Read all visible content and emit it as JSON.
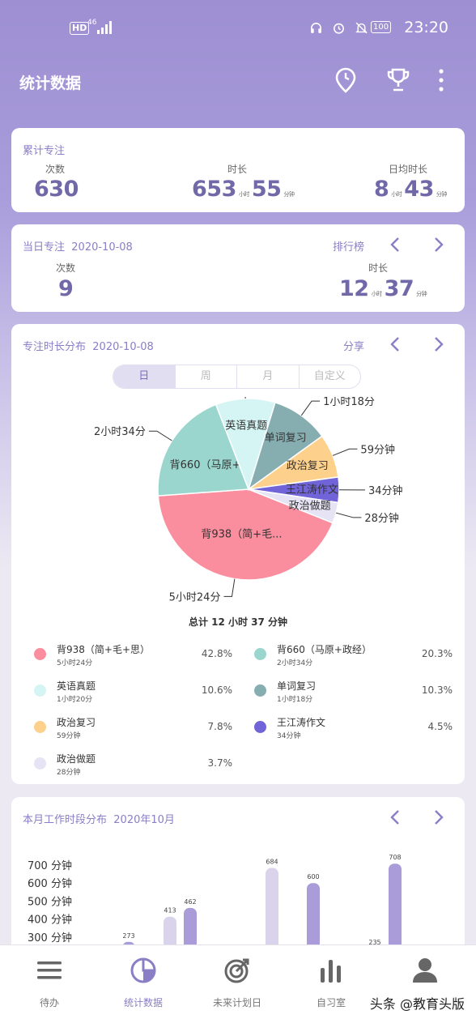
{
  "status_bar": {
    "hd": "HD",
    "net": "46",
    "battery": "100",
    "time": "23:20"
  },
  "header": {
    "title": "统计数据"
  },
  "cumulative": {
    "label": "累计专注",
    "count_label": "次数",
    "count": "630",
    "duration_label": "时长",
    "hours": "653",
    "hours_unit": "小时",
    "minutes": "55",
    "minutes_unit": "分钟",
    "daily_label": "日均时长",
    "daily_hours": "8",
    "daily_hours_unit": "小时",
    "daily_minutes": "43",
    "daily_minutes_unit": "分钟"
  },
  "today": {
    "label": "当日专注",
    "date": "2020-10-08",
    "ranking": "排行榜",
    "count_label": "次数",
    "count": "9",
    "duration_label": "时长",
    "hours": "12",
    "hours_unit": "小时",
    "minutes": "37",
    "minutes_unit": "分钟"
  },
  "distribution": {
    "label": "专注时长分布",
    "date": "2020-10-08",
    "share": "分享",
    "tabs": [
      "日",
      "周",
      "月",
      "自定义"
    ],
    "active_tab": 0,
    "total": "总计 12 小时 37 分钟",
    "pie": {
      "slices": [
        {
          "name": "背938（简+毛+思）",
          "short": "背938（简+毛...",
          "callout": "5小时24分",
          "duration": "5小时24分",
          "percent": 42.8,
          "percent_label": "42.8%",
          "color": "#fb8e9e"
        },
        {
          "name": "背660（马原+政经）",
          "short": "背660（马原+...",
          "callout": "2小时34分",
          "duration": "2小时34分",
          "percent": 20.3,
          "percent_label": "20.3%",
          "color": "#9ad6cd"
        },
        {
          "name": "英语真题",
          "short": "英语真题",
          "callout": "1小时20分",
          "duration": "1小时20分",
          "percent": 10.6,
          "percent_label": "10.6%",
          "color": "#d4f5f4"
        },
        {
          "name": "单词复习",
          "short": "单词复习",
          "callout": "1小时18分",
          "duration": "1小时18分",
          "percent": 10.3,
          "percent_label": "10.3%",
          "color": "#86aeb0"
        },
        {
          "name": "政治复习",
          "short": "政治复习",
          "callout": "59分钟",
          "duration": "59分钟",
          "percent": 7.8,
          "percent_label": "7.8%",
          "color": "#fdd08c"
        },
        {
          "name": "王江涛作文",
          "short": "王江涛作文",
          "callout": "34分钟",
          "duration": "34分钟",
          "percent": 4.5,
          "percent_label": "4.5%",
          "color": "#7064d8"
        },
        {
          "name": "政治做题",
          "short": "政治做题",
          "callout": "28分钟",
          "duration": "28分钟",
          "percent": 3.7,
          "percent_label": "3.7%",
          "color": "#e6e3f4"
        }
      ]
    }
  },
  "monthly": {
    "label": "本月工作时段分布",
    "month": "2020年10月",
    "y_ticks": [
      "700 分钟",
      "600 分钟",
      "500 分钟",
      "400 分钟",
      "300 分钟"
    ],
    "bars": [
      {
        "value": 273,
        "label": "273",
        "shade": "dark"
      },
      {
        "value": 413,
        "label": "413",
        "shade": "light"
      },
      {
        "value": 462,
        "label": "462",
        "shade": "dark"
      },
      {
        "value": 684,
        "label": "684",
        "shade": "light"
      },
      {
        "value": 600,
        "label": "600",
        "shade": "dark"
      },
      {
        "value": 235,
        "label": "235",
        "shade": "light"
      },
      {
        "value": 708,
        "label": "708",
        "shade": "dark"
      }
    ]
  },
  "tabbar": {
    "items": [
      {
        "label": "待办",
        "icon": "menu-icon"
      },
      {
        "label": "统计数据",
        "icon": "pie-chart-icon"
      },
      {
        "label": "未来计划日",
        "icon": "target-icon"
      },
      {
        "label": "自习室",
        "icon": "bar-chart-icon"
      },
      {
        "label": "",
        "icon": "person-icon"
      }
    ],
    "active": 1
  },
  "watermark": "头条 @教育头版"
}
